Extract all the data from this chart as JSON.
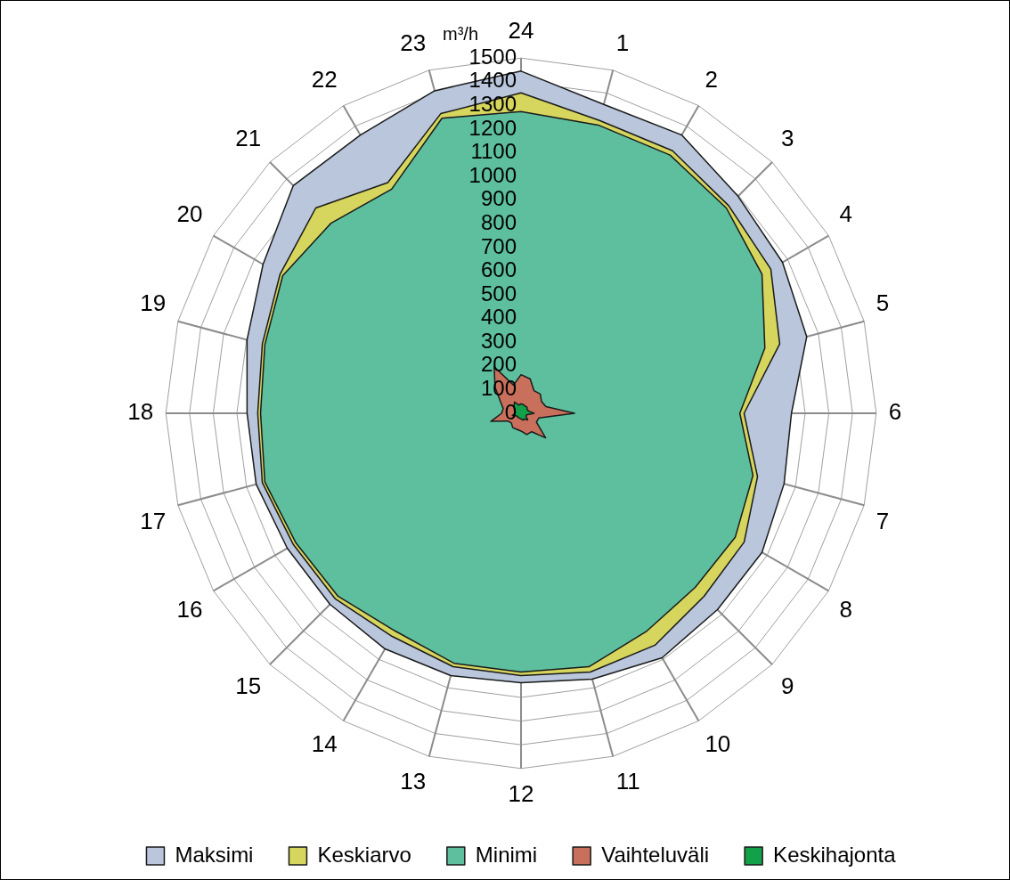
{
  "chart_data": {
    "type": "radar",
    "ylabel": "m³/h",
    "categories": [
      "24",
      "1",
      "2",
      "3",
      "4",
      "5",
      "6",
      "7",
      "8",
      "9",
      "10",
      "11",
      "12",
      "13",
      "14",
      "15",
      "16",
      "17",
      "18",
      "19",
      "20",
      "21",
      "22",
      "23"
    ],
    "series": [
      {
        "name": "Maksimi",
        "color": "#b9c6dc",
        "values": [
          1445,
          1350,
          1357,
          1296,
          1275,
          1249,
          1142,
          1150,
          1175,
          1173,
          1192,
          1162,
          1138,
          1147,
          1149,
          1141,
          1140,
          1158,
          1157,
          1198,
          1258,
          1360,
          1357,
          1410
        ]
      },
      {
        "name": "Keskiarvo",
        "color": "#d6d55e",
        "values": [
          1353,
          1280,
          1280,
          1240,
          1218,
          1131,
          942,
          1034,
          1088,
          1093,
          1131,
          1131,
          1108,
          1108,
          1088,
          1109,
          1110,
          1131,
          1112,
          1131,
          1175,
          1226,
          1125,
          1310
        ]
      },
      {
        "name": "Minimi",
        "color": "#5dbf9d",
        "values": [
          1274,
          1260,
          1259,
          1226,
          1175,
          1066,
          924,
          1014,
          1045,
          1040,
          1062,
          1108,
          1093,
          1093,
          1062,
          1093,
          1097,
          1120,
          1100,
          1120,
          1162,
          1135,
          1093,
          1290
        ]
      },
      {
        "name": "Vaihteluväli",
        "color": "#c8705c",
        "values": [
          163,
          150,
          110,
          115,
          100,
          109,
          226,
          78,
          75,
          147,
          90,
          93,
          75,
          70,
          70,
          58,
          65,
          132,
          82,
          78,
          101,
          155,
          227,
          123
        ]
      },
      {
        "name": "Keskihajonta",
        "color": "#12a048",
        "values": [
          40,
          38,
          35,
          36,
          30,
          34,
          55,
          25,
          24,
          40,
          28,
          30,
          24,
          22,
          22,
          20,
          22,
          38,
          26,
          25,
          30,
          42,
          55,
          36
        ]
      }
    ],
    "ylim": [
      0,
      1500
    ],
    "yticks": [
      0,
      100,
      200,
      300,
      400,
      500,
      600,
      700,
      800,
      900,
      1000,
      1100,
      1200,
      1300,
      1400,
      1500
    ],
    "grid": true,
    "legend": "bottom"
  }
}
